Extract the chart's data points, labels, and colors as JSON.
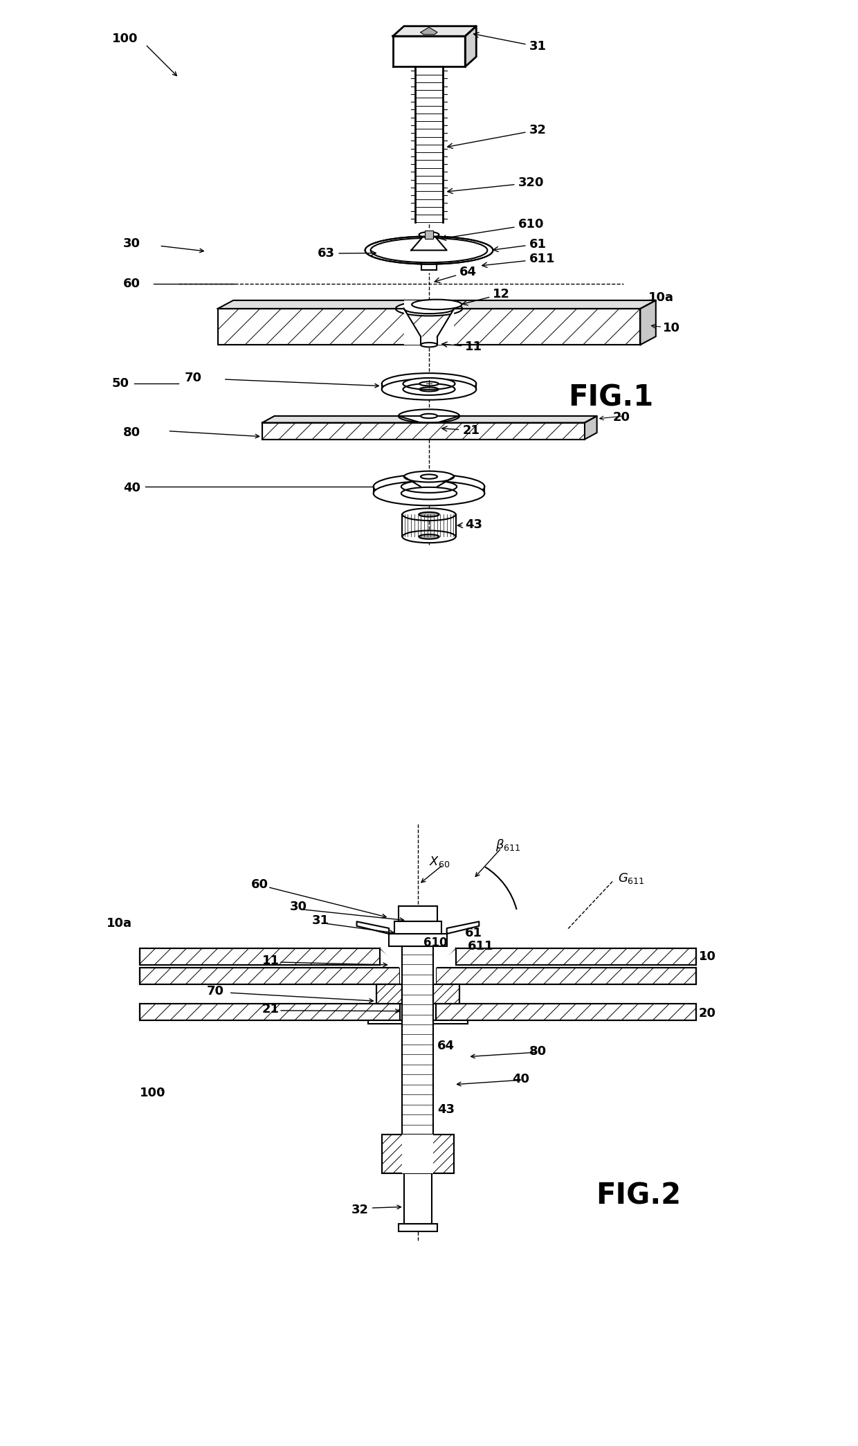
{
  "bg_color": "#ffffff",
  "line_color": "#000000",
  "fig_label1": "FIG.1",
  "fig_label2": "FIG.2",
  "fig_label_fontsize": 30,
  "annotation_fontsize": 13
}
